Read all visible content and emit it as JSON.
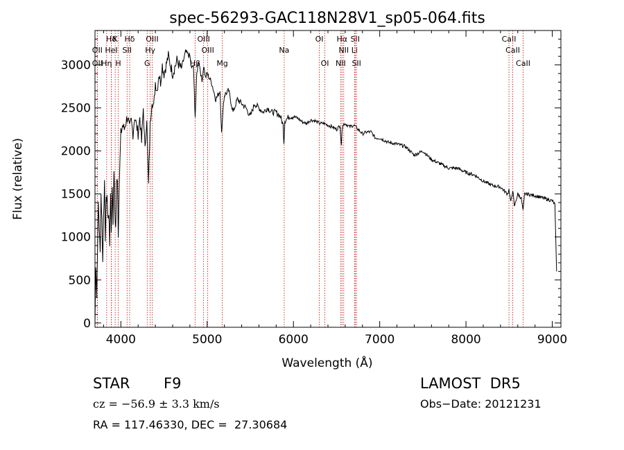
{
  "chart_data": {
    "type": "line",
    "title": "spec-56293-GAC118N28V1_sp05-064.fits",
    "xlabel": "Wavelength (Å)",
    "ylabel": "Flux (relative)",
    "xlim": [
      3700,
      9100
    ],
    "ylim": [
      -50,
      3400
    ],
    "xticks": [
      4000,
      5000,
      6000,
      7000,
      8000,
      9000
    ],
    "yticks": [
      0,
      500,
      1000,
      1500,
      2000,
      2500,
      3000
    ],
    "grid": false,
    "series": [
      {
        "x": [
          3700,
          3710,
          3720,
          3730,
          3740,
          3750,
          3760,
          3770,
          3780,
          3790,
          3800,
          3810,
          3820,
          3830,
          3840,
          3850,
          3860,
          3870,
          3880,
          3890,
          3900,
          3910,
          3920,
          3930,
          3940,
          3950,
          3960,
          3970,
          3980,
          3990,
          4000,
          4020,
          4040,
          4060,
          4080,
          4100,
          4120,
          4140,
          4160,
          4180,
          4200,
          4220,
          4240,
          4260,
          4280,
          4300,
          4320,
          4340,
          4360,
          4380,
          4400,
          4420,
          4440,
          4460,
          4480,
          4500,
          4550,
          4600,
          4650,
          4700,
          4750,
          4800,
          4820,
          4840,
          4861,
          4880,
          4900,
          4920,
          4940,
          4960,
          4980,
          5000,
          5050,
          5100,
          5150,
          5167,
          5175,
          5183,
          5200,
          5250,
          5300,
          5350,
          5400,
          5450,
          5500,
          5550,
          5600,
          5650,
          5700,
          5750,
          5800,
          5850,
          5880,
          5890,
          5900,
          5950,
          6000,
          6050,
          6100,
          6150,
          6200,
          6250,
          6300,
          6350,
          6400,
          6450,
          6500,
          6540,
          6555,
          6563,
          6570,
          6600,
          6650,
          6700,
          6750,
          6800,
          6850,
          6900,
          6950,
          7000,
          7100,
          7200,
          7300,
          7400,
          7500,
          7600,
          7700,
          7800,
          7900,
          8000,
          8100,
          8200,
          8300,
          8400,
          8480,
          8498,
          8520,
          8542,
          8560,
          8600,
          8640,
          8662,
          8680,
          8700,
          8800,
          8900,
          9000,
          9030,
          9050
        ],
        "y": [
          0,
          700,
          300,
          900,
          1400,
          1100,
          800,
          1500,
          1200,
          700,
          1300,
          1600,
          1000,
          1400,
          1500,
          1200,
          1300,
          900,
          1500,
          1100,
          1600,
          1200,
          1800,
          1300,
          1100,
          1600,
          1700,
          1000,
          1600,
          1900,
          2200,
          2300,
          2250,
          2350,
          2400,
          2250,
          2350,
          2200,
          2400,
          2300,
          2200,
          2400,
          2100,
          2500,
          2000,
          2400,
          1600,
          2300,
          2600,
          2500,
          2800,
          2700,
          2900,
          2800,
          3000,
          2900,
          3100,
          2900,
          3050,
          2950,
          3150,
          3100,
          2950,
          3000,
          2400,
          2900,
          3050,
          2950,
          2800,
          3000,
          2850,
          2900,
          2800,
          2600,
          2700,
          2200,
          2300,
          2500,
          2650,
          2700,
          2450,
          2600,
          2550,
          2500,
          2400,
          2550,
          2500,
          2450,
          2500,
          2450,
          2450,
          2400,
          2300,
          2100,
          2350,
          2400,
          2400,
          2380,
          2340,
          2320,
          2360,
          2350,
          2320,
          2320,
          2300,
          2280,
          2250,
          2300,
          2050,
          2250,
          2300,
          2320,
          2280,
          2300,
          2250,
          2200,
          2220,
          2220,
          2150,
          2150,
          2100,
          2080,
          2050,
          1950,
          2000,
          1900,
          1850,
          1800,
          1800,
          1750,
          1720,
          1650,
          1600,
          1580,
          1500,
          1550,
          1400,
          1550,
          1350,
          1500,
          1450,
          1300,
          1500,
          1500,
          1480,
          1450,
          1420,
          1380,
          600
        ]
      }
    ],
    "lines": [
      {
        "label": "Hδ",
        "x": 3889,
        "row": 0
      },
      {
        "label": "K",
        "x": 3934,
        "row": 0
      },
      {
        "label": "Hδ",
        "x": 4102,
        "row": 0
      },
      {
        "label": "OIII",
        "x": 4363,
        "row": 0
      },
      {
        "label": "OIII",
        "x": 4959,
        "row": 0
      },
      {
        "label": "OI",
        "x": 6300,
        "row": 0
      },
      {
        "label": "Hα",
        "x": 6563,
        "row": 0
      },
      {
        "label": "SII",
        "x": 6716,
        "row": 0
      },
      {
        "label": "CaII",
        "x": 8498,
        "row": 0
      },
      {
        "label": "OII",
        "x": 3727,
        "row": 1
      },
      {
        "label": "HeI",
        "x": 3889,
        "row": 1
      },
      {
        "label": "SII",
        "x": 4072,
        "row": 1
      },
      {
        "label": "Hγ",
        "x": 4340,
        "row": 1
      },
      {
        "label": "OIII",
        "x": 5007,
        "row": 1
      },
      {
        "label": "Na",
        "x": 5893,
        "row": 1
      },
      {
        "label": "NII",
        "x": 6583,
        "row": 1
      },
      {
        "label": "Li",
        "x": 6708,
        "row": 1
      },
      {
        "label": "CaII",
        "x": 8542,
        "row": 1
      },
      {
        "label": "OII",
        "x": 3727,
        "row": 2
      },
      {
        "label": "Hη",
        "x": 3835,
        "row": 2
      },
      {
        "label": "H",
        "x": 3969,
        "row": 2
      },
      {
        "label": "G",
        "x": 4305,
        "row": 2
      },
      {
        "label": "Hβ",
        "x": 4861,
        "row": 2
      },
      {
        "label": "Mg",
        "x": 5175,
        "row": 2
      },
      {
        "label": "OI",
        "x": 6364,
        "row": 2
      },
      {
        "label": "NII",
        "x": 6548,
        "row": 2
      },
      {
        "label": "SII",
        "x": 6731,
        "row": 2
      },
      {
        "label": "CaII",
        "x": 8662,
        "row": 2
      }
    ]
  },
  "info": {
    "obj_class": "STAR",
    "subclass": "F9",
    "survey": "LAMOST  DR5",
    "cz": "cz = −56.9 ± 3.3 km/s",
    "obs_date": "Obs−Date: 20121231",
    "coords": "RA = 117.46330, DEC =  27.30684"
  },
  "colors": {
    "spectrum": "#000000",
    "line_marker": "#c00000",
    "text": "#000000"
  }
}
